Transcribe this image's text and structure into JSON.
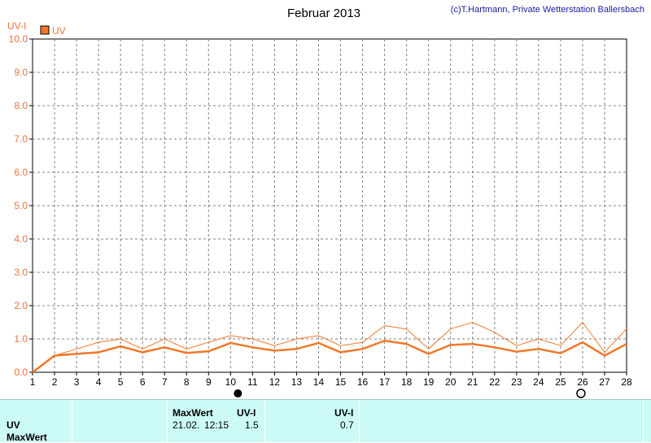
{
  "chart_data": {
    "type": "line",
    "title": "Februar 2013",
    "copyright": "(c)T.Hartmann, Private Wetterstation Ballersbach",
    "ylabel": "UV-I",
    "legend": [
      "UV"
    ],
    "legend_position": "top-left",
    "grid": true,
    "ylim": [
      0,
      10
    ],
    "xlim": [
      1,
      28
    ],
    "y_ticks": [
      "0.0",
      "1.0",
      "2.0",
      "3.0",
      "4.0",
      "5.0",
      "6.0",
      "7.0",
      "8.0",
      "9.0",
      "10.0"
    ],
    "x_ticks": [
      "1",
      "2",
      "3",
      "4",
      "5",
      "6",
      "7",
      "8",
      "9",
      "10",
      "11",
      "12",
      "13",
      "14",
      "15",
      "16",
      "17",
      "18",
      "19",
      "20",
      "21",
      "22",
      "23",
      "24",
      "25",
      "26",
      "27",
      "28"
    ],
    "x": [
      1,
      2,
      3,
      4,
      5,
      6,
      7,
      8,
      9,
      10,
      11,
      12,
      13,
      14,
      15,
      16,
      17,
      18,
      19,
      20,
      21,
      22,
      23,
      24,
      25,
      26,
      27,
      28
    ],
    "series": [
      {
        "name": "UV",
        "values": [
          0.0,
          0.5,
          0.55,
          0.6,
          0.78,
          0.6,
          0.75,
          0.58,
          0.63,
          0.88,
          0.75,
          0.65,
          0.7,
          0.88,
          0.6,
          0.7,
          0.95,
          0.85,
          0.55,
          0.82,
          0.85,
          0.75,
          0.62,
          0.7,
          0.57,
          0.9,
          0.5,
          0.85
        ]
      },
      {
        "name": "MaxWert",
        "values": [
          0.0,
          0.5,
          0.7,
          0.9,
          1.0,
          0.7,
          1.0,
          0.7,
          0.9,
          1.1,
          1.0,
          0.8,
          1.0,
          1.1,
          0.8,
          0.9,
          1.4,
          1.3,
          0.7,
          1.3,
          1.5,
          1.2,
          0.8,
          1.0,
          0.8,
          1.5,
          0.6,
          1.3
        ]
      }
    ],
    "colors": {
      "avg": "#f07828",
      "max": "#f07828",
      "grid": "#808080",
      "ytick": "#e8743b"
    },
    "moon_markers": [
      {
        "x": 10,
        "phase": "new-moon"
      },
      {
        "x": 26,
        "phase": "full-moon"
      }
    ]
  },
  "footer": {
    "rows": [
      "UV",
      "MaxWert"
    ],
    "max_header": "MaxWert",
    "unit_header1": "UV-I",
    "unit_header2": "UV-I",
    "max_date": "21.02.",
    "max_time": "12:15",
    "max_value": "1.5",
    "avg_value": "0.7"
  }
}
